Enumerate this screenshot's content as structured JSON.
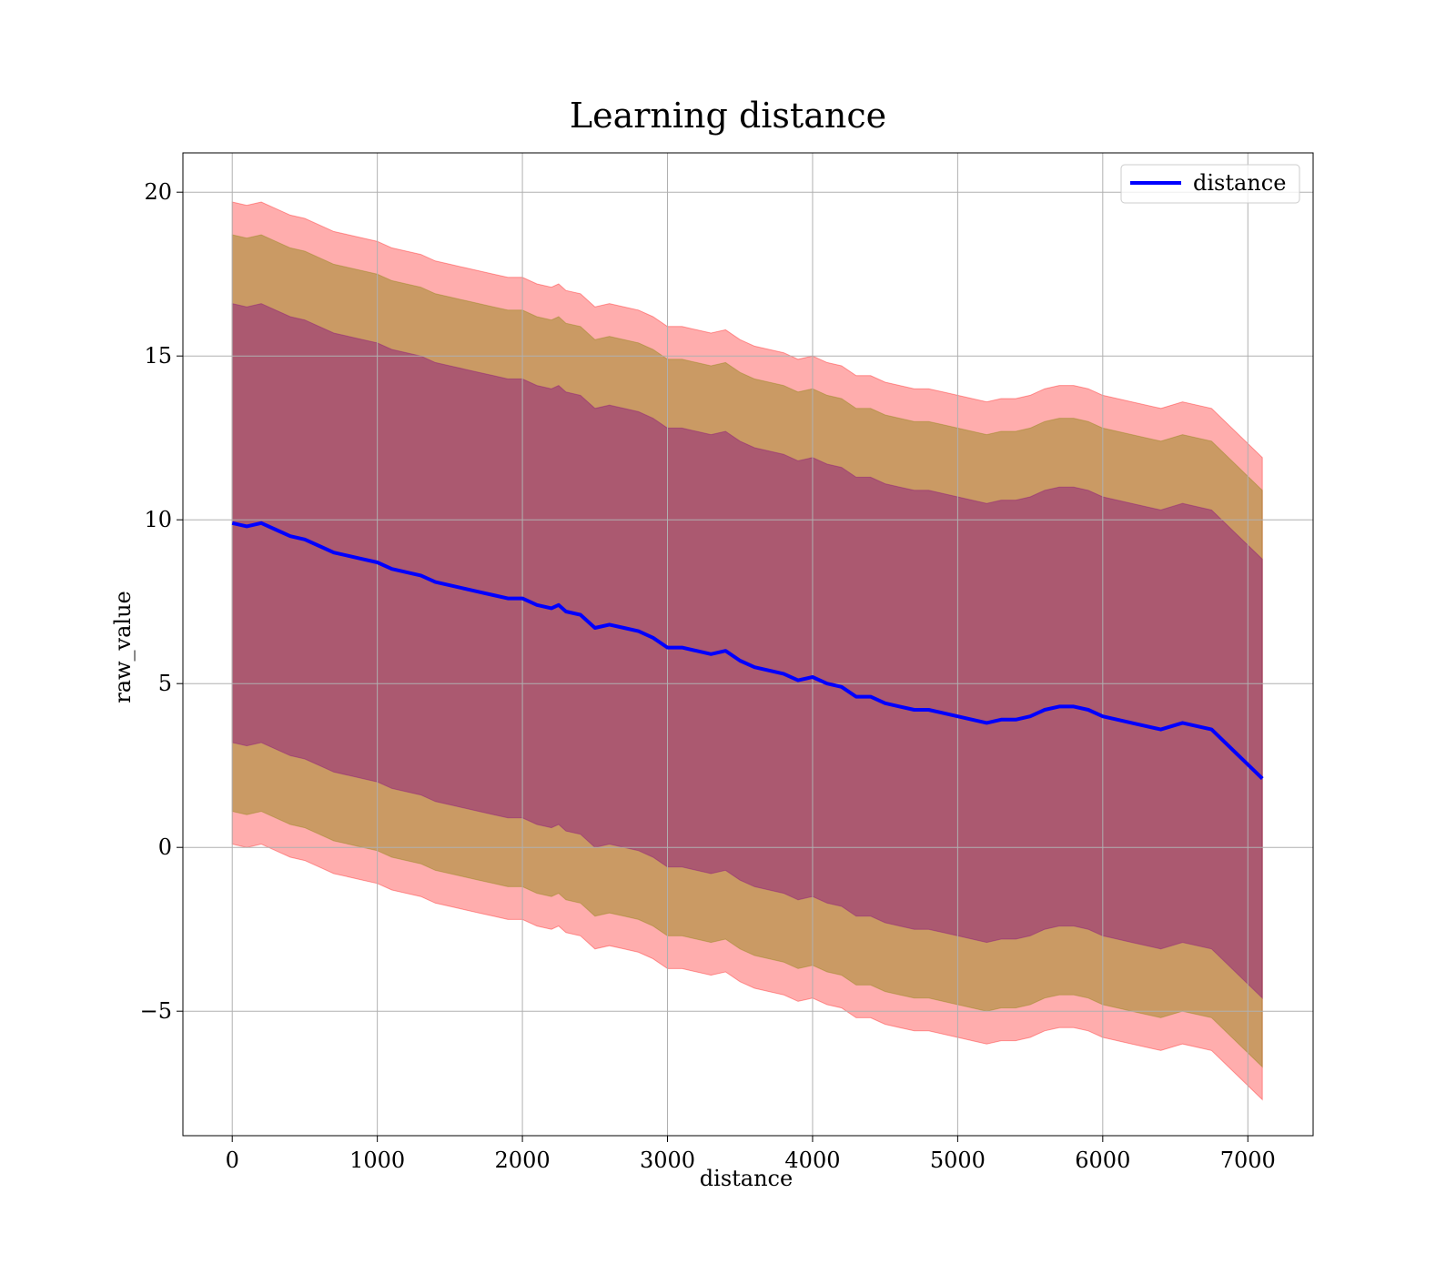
{
  "chart_data": {
    "type": "line",
    "title": "Learning distance",
    "xlabel": "distance",
    "ylabel": "raw_value",
    "xlim": [
      -340,
      7450
    ],
    "ylim": [
      -8.8,
      21.2
    ],
    "x_ticks": [
      0,
      1000,
      2000,
      3000,
      4000,
      5000,
      6000,
      7000
    ],
    "y_ticks": [
      -5,
      0,
      5,
      10,
      15,
      20
    ],
    "x_tick_labels": [
      "0",
      "1000",
      "2000",
      "3000",
      "4000",
      "5000",
      "6000",
      "7000"
    ],
    "y_tick_labels": [
      "−5",
      "0",
      "5",
      "10",
      "15",
      "20"
    ],
    "grid": true,
    "legend_position": "top-right",
    "colors": {
      "line": "#0000ff",
      "band_outer": "#ff0000",
      "band_middle": "#808000",
      "band_inner": "#800080"
    },
    "series": [
      {
        "name": "distance",
        "x": [
          0,
          100,
          200,
          300,
          400,
          500,
          600,
          700,
          800,
          900,
          1000,
          1100,
          1200,
          1300,
          1400,
          1500,
          1600,
          1700,
          1800,
          1900,
          2000,
          2100,
          2200,
          2250,
          2300,
          2400,
          2500,
          2600,
          2700,
          2800,
          2900,
          3000,
          3100,
          3200,
          3300,
          3400,
          3500,
          3600,
          3700,
          3800,
          3900,
          4000,
          4100,
          4200,
          4300,
          4400,
          4500,
          4600,
          4700,
          4800,
          4900,
          5000,
          5100,
          5200,
          5300,
          5400,
          5500,
          5600,
          5700,
          5800,
          5900,
          6000,
          6100,
          6200,
          6400,
          6550,
          6750,
          7100
        ],
        "values": [
          9.9,
          9.8,
          9.9,
          9.7,
          9.5,
          9.4,
          9.2,
          9.0,
          8.9,
          8.8,
          8.7,
          8.5,
          8.4,
          8.3,
          8.1,
          8.0,
          7.9,
          7.8,
          7.7,
          7.6,
          7.6,
          7.4,
          7.3,
          7.4,
          7.2,
          7.1,
          6.7,
          6.8,
          6.7,
          6.6,
          6.4,
          6.1,
          6.1,
          6.0,
          5.9,
          6.0,
          5.7,
          5.5,
          5.4,
          5.3,
          5.1,
          5.2,
          5.0,
          4.9,
          4.6,
          4.6,
          4.4,
          4.3,
          4.2,
          4.2,
          4.1,
          4.0,
          3.9,
          3.8,
          3.9,
          3.9,
          4.0,
          4.2,
          4.3,
          4.3,
          4.2,
          4.0,
          3.9,
          3.8,
          3.6,
          3.8,
          3.6,
          2.1
        ]
      }
    ],
    "bands": {
      "outer": {
        "offset_upper": 9.8,
        "offset_lower": 9.8
      },
      "middle": {
        "offset_upper": 8.8,
        "offset_lower": 8.8
      },
      "inner": {
        "offset_upper": 6.7,
        "offset_lower": 6.7
      }
    }
  }
}
